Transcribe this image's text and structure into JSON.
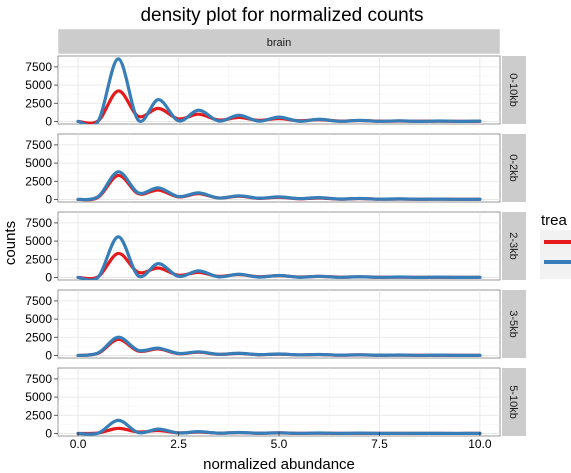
{
  "chart_data": {
    "type": "line",
    "title": "density plot for normalized counts",
    "xlabel": "normalized abundance",
    "ylabel": "counts",
    "column_strip": "brain",
    "xlim": [
      -0.5,
      10.5
    ],
    "ylim": [
      -350,
      9000
    ],
    "x_ticks": [
      0,
      2.5,
      5,
      7.5,
      10
    ],
    "x_tick_labels": [
      "0.0",
      "2.5",
      "5.0",
      "7.5",
      "10.0"
    ],
    "y_ticks": [
      0,
      2500,
      5000,
      7500
    ],
    "y_tick_labels": [
      "0",
      "2500",
      "5000",
      "7500"
    ],
    "legend": {
      "title": "trea",
      "position": "right"
    },
    "grid": true,
    "series_colors": [
      "#e41a1c",
      "#377eb8"
    ],
    "x": [
      0,
      0.5,
      1,
      1.5,
      2,
      2.5,
      3,
      3.5,
      4,
      4.5,
      5,
      5.5,
      6,
      6.5,
      7,
      7.5,
      8,
      8.5,
      9,
      9.5,
      10
    ],
    "panels": [
      {
        "label": "0-10kb",
        "series": [
          {
            "values": [
              0,
              80,
              4200,
              700,
              1800,
              350,
              1000,
              200,
              550,
              150,
              400,
              100,
              250,
              50,
              120,
              40,
              60,
              30,
              40,
              20,
              30
            ]
          },
          {
            "values": [
              0,
              40,
              8600,
              150,
              3000,
              80,
              1550,
              60,
              850,
              40,
              600,
              30,
              300,
              20,
              150,
              20,
              90,
              10,
              60,
              10,
              50
            ]
          }
        ]
      },
      {
        "label": "0-2kb",
        "series": [
          {
            "values": [
              0,
              300,
              3300,
              800,
              1300,
              350,
              800,
              200,
              450,
              150,
              300,
              100,
              200,
              50,
              120,
              40,
              60,
              30,
              40,
              20,
              20
            ]
          },
          {
            "values": [
              0,
              400,
              3800,
              900,
              1600,
              400,
              900,
              200,
              500,
              180,
              350,
              120,
              250,
              60,
              140,
              40,
              80,
              30,
              50,
              20,
              30
            ]
          }
        ]
      },
      {
        "label": "2-3kb",
        "series": [
          {
            "values": [
              0,
              100,
              3300,
              700,
              1300,
              300,
              700,
              150,
              400,
              100,
              250,
              60,
              150,
              40,
              90,
              30,
              50,
              20,
              30,
              10,
              20
            ]
          },
          {
            "values": [
              0,
              50,
              5600,
              200,
              1900,
              150,
              900,
              80,
              450,
              50,
              280,
              30,
              160,
              20,
              100,
              20,
              60,
              10,
              40,
              10,
              20
            ]
          }
        ]
      },
      {
        "label": "3-5kb",
        "series": [
          {
            "values": [
              0,
              300,
              2200,
              600,
              900,
              250,
              450,
              150,
              280,
              100,
              180,
              70,
              120,
              40,
              80,
              30,
              50,
              20,
              30,
              10,
              20
            ]
          },
          {
            "values": [
              0,
              350,
              2500,
              700,
              1000,
              280,
              500,
              160,
              300,
              110,
              200,
              80,
              130,
              50,
              90,
              30,
              60,
              20,
              40,
              10,
              20
            ]
          }
        ]
      },
      {
        "label": "5-10kb",
        "series": [
          {
            "values": [
              0,
              60,
              700,
              200,
              400,
              80,
              200,
              50,
              120,
              30,
              80,
              20,
              50,
              10,
              30,
              10,
              20,
              10,
              10,
              5,
              10
            ]
          },
          {
            "values": [
              0,
              40,
              1800,
              120,
              600,
              60,
              250,
              40,
              130,
              30,
              90,
              20,
              60,
              10,
              40,
              10,
              20,
              10,
              10,
              5,
              10
            ]
          }
        ]
      }
    ]
  }
}
